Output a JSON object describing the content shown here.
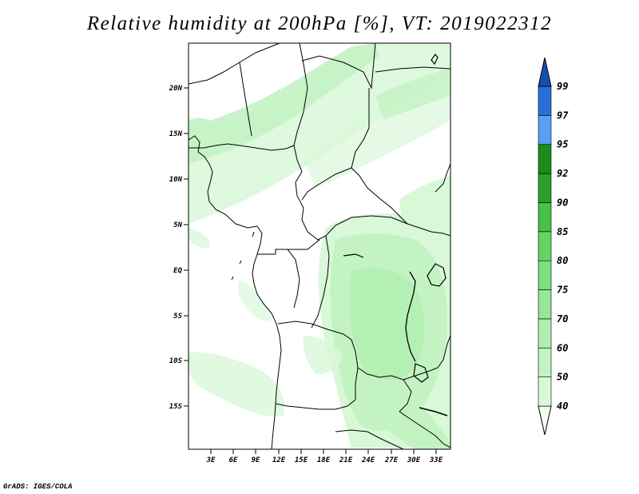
{
  "title": "Relative humidity at 200hPa [%], VT: 2019022312",
  "credit": "GrADS: IGES/COLA",
  "map": {
    "lat_ticks": [
      "20N",
      "15N",
      "10N",
      "5N",
      "EQ",
      "5S",
      "10S",
      "15S"
    ],
    "lon_ticks": [
      "3E",
      "6E",
      "9E",
      "12E",
      "15E",
      "18E",
      "21E",
      "24E",
      "27E",
      "30E",
      "33E"
    ]
  },
  "colorbar": {
    "levels": [
      "40",
      "50",
      "60",
      "70",
      "75",
      "80",
      "85",
      "90",
      "92",
      "95",
      "97",
      "99"
    ],
    "colors": [
      "#f0fdf0",
      "#d8f8d8",
      "#c3f3c3",
      "#aeeeae",
      "#96e796",
      "#7de07d",
      "#64d464",
      "#46c046",
      "#2aa02a",
      "#1a8c1a",
      "#5aa0f0",
      "#2a6fd6",
      "#1450b4"
    ]
  },
  "chart_data": {
    "type": "heatmap",
    "title": "Relative humidity at 200hPa [%], VT: 2019022312",
    "variable": "Relative humidity",
    "units": "%",
    "level": "200hPa",
    "valid_time": "2019022312",
    "x_ticks": [
      "3E",
      "6E",
      "9E",
      "12E",
      "15E",
      "18E",
      "21E",
      "24E",
      "27E",
      "30E",
      "33E"
    ],
    "y_ticks": [
      "20N",
      "15N",
      "10N",
      "5N",
      "EQ",
      "5S",
      "10S",
      "15S"
    ],
    "xlim": [
      0,
      34
    ],
    "ylim": [
      -20,
      25
    ],
    "contour_levels": [
      40,
      50,
      60,
      70,
      75,
      80,
      85,
      90,
      92,
      95,
      97,
      99
    ]
  }
}
